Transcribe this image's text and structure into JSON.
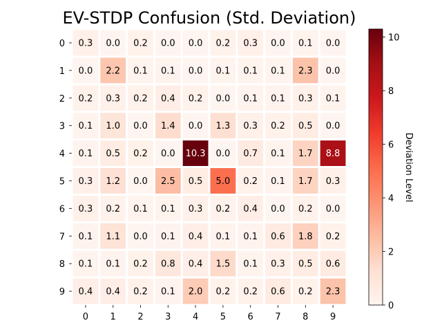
{
  "chart_data": {
    "type": "heatmap",
    "title": "EV-STDP Confusion (Std. Deviation)",
    "x_labels": [
      "0",
      "1",
      "2",
      "3",
      "4",
      "5",
      "6",
      "7",
      "8",
      "9"
    ],
    "y_labels": [
      "0",
      "1",
      "2",
      "3",
      "4",
      "5",
      "6",
      "7",
      "8",
      "9"
    ],
    "values": [
      [
        0.3,
        0.0,
        0.2,
        0.0,
        0.0,
        0.2,
        0.3,
        0.0,
        0.1,
        0.0
      ],
      [
        0.0,
        2.2,
        0.1,
        0.1,
        0.0,
        0.1,
        0.1,
        0.1,
        2.3,
        0.0
      ],
      [
        0.2,
        0.3,
        0.2,
        0.4,
        0.2,
        0.0,
        0.1,
        0.1,
        0.3,
        0.1
      ],
      [
        0.1,
        1.0,
        0.0,
        1.4,
        0.0,
        1.3,
        0.3,
        0.2,
        0.5,
        0.0
      ],
      [
        0.1,
        0.5,
        0.2,
        0.0,
        10.3,
        0.0,
        0.7,
        0.1,
        1.7,
        8.8
      ],
      [
        0.3,
        1.2,
        0.0,
        2.5,
        0.5,
        5.0,
        0.2,
        0.1,
        1.7,
        0.3
      ],
      [
        0.3,
        0.2,
        0.1,
        0.1,
        0.3,
        0.2,
        0.4,
        0.0,
        0.2,
        0.0
      ],
      [
        0.1,
        1.1,
        0.0,
        0.1,
        0.4,
        0.1,
        0.1,
        0.6,
        1.8,
        0.2
      ],
      [
        0.1,
        0.1,
        0.2,
        0.8,
        0.4,
        1.5,
        0.1,
        0.3,
        0.5,
        0.6
      ],
      [
        0.4,
        0.4,
        0.2,
        0.1,
        2.0,
        0.2,
        0.2,
        0.6,
        0.2,
        2.3
      ]
    ],
    "value_format_decimals": 1,
    "colormap": "Reds",
    "colorbar": {
      "label": "Deviation Level",
      "range": [
        0,
        10.3
      ],
      "ticks": [
        0,
        2,
        4,
        6,
        8,
        10
      ]
    }
  },
  "colors": {
    "cell_border": "#ffffff",
    "text_dark": "#000000",
    "text_light": "#ffffff"
  }
}
